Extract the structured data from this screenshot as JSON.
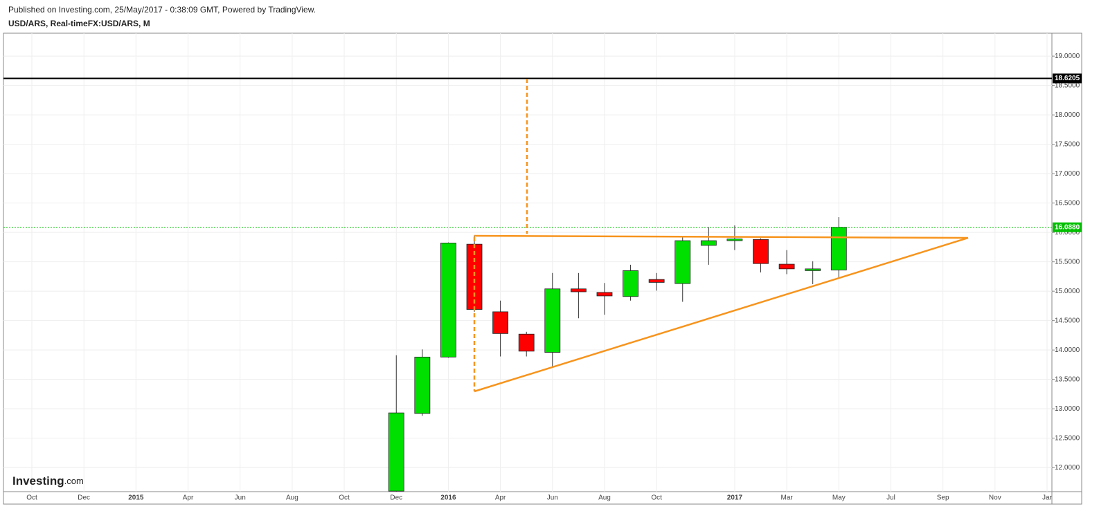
{
  "header": {
    "published": "Published on Investing.com, 25/May/2017 - 0:38:09 GMT, Powered by TradingView.",
    "symbol": "USD/ARS, Real-timeFX:USD/ARS, M"
  },
  "logo": {
    "brand": "Investing",
    "suffix": ".com"
  },
  "chart_data": {
    "type": "candlestick",
    "categories": [
      "Oct",
      null,
      "Dec",
      null,
      "2015",
      null,
      "Apr",
      null,
      "Jun",
      null,
      "Aug",
      null,
      "Oct",
      null,
      "Dec",
      null,
      "2016",
      null,
      "Apr",
      null,
      "Jun",
      null,
      "Aug",
      null,
      "Oct",
      null,
      null,
      "2017",
      null,
      "Mar",
      null,
      "May",
      null,
      "Jul",
      null,
      "Sep",
      null,
      "Nov",
      null,
      "Jar"
    ],
    "open": [
      null,
      null,
      null,
      null,
      null,
      null,
      null,
      null,
      null,
      null,
      null,
      null,
      null,
      null,
      11.6,
      12.92,
      13.88,
      15.8,
      14.65,
      14.27,
      13.96,
      15.04,
      14.98,
      14.91,
      15.2,
      15.13,
      15.78,
      15.86,
      15.88,
      15.46,
      15.35,
      15.36,
      null,
      null,
      null,
      null,
      null,
      null,
      null,
      null
    ],
    "high": [
      null,
      null,
      null,
      null,
      null,
      null,
      null,
      null,
      null,
      null,
      null,
      null,
      null,
      null,
      13.91,
      14.01,
      15.83,
      15.95,
      14.84,
      14.31,
      15.31,
      15.31,
      15.14,
      15.45,
      15.31,
      15.92,
      16.09,
      16.12,
      15.9,
      15.7,
      15.51,
      16.26,
      null,
      null,
      null,
      null,
      null,
      null,
      null,
      null
    ],
    "low": [
      null,
      null,
      null,
      null,
      null,
      null,
      null,
      null,
      null,
      null,
      null,
      null,
      null,
      null,
      11.55,
      12.88,
      13.87,
      14.65,
      13.89,
      13.89,
      13.72,
      14.54,
      14.6,
      14.84,
      15.01,
      14.82,
      15.45,
      15.7,
      15.32,
      15.29,
      15.12,
      15.22,
      null,
      null,
      null,
      null,
      null,
      null,
      null,
      null
    ],
    "close": [
      null,
      null,
      null,
      null,
      null,
      null,
      null,
      null,
      null,
      null,
      null,
      null,
      null,
      null,
      12.93,
      13.88,
      15.82,
      14.69,
      14.28,
      13.98,
      15.04,
      14.99,
      14.92,
      15.35,
      15.15,
      15.86,
      15.86,
      15.89,
      15.47,
      15.38,
      15.38,
      16.088,
      null,
      null,
      null,
      null,
      null,
      null,
      null,
      null
    ],
    "up_color": "#00e000",
    "down_color": "#ff0000",
    "ylim": [
      11.59,
      19.39
    ],
    "yticks": [
      {
        "value": 12,
        "label": "12.0000"
      },
      {
        "value": 12.5,
        "label": "12.5000"
      },
      {
        "value": 13,
        "label": "13.0000"
      },
      {
        "value": 13.5,
        "label": "13.5000"
      },
      {
        "value": 14,
        "label": "14.0000"
      },
      {
        "value": 14.5,
        "label": "14.5000"
      },
      {
        "value": 15,
        "label": "15.0000"
      },
      {
        "value": 15.5,
        "label": "15.5000"
      },
      {
        "value": 16,
        "label": "16.0000"
      },
      {
        "value": 16.5,
        "label": "16.5000"
      },
      {
        "value": 17,
        "label": "17.0000"
      },
      {
        "value": 17.5,
        "label": "17.5000"
      },
      {
        "value": 18,
        "label": "18.0000"
      },
      {
        "value": 18.5,
        "label": "18.5000"
      },
      {
        "value": 19,
        "label": "19.0000"
      }
    ],
    "grid": true,
    "price_lines": [
      {
        "value": 18.6205,
        "label": "18.6205",
        "color": "#000000",
        "style": "solid"
      },
      {
        "value": 16.088,
        "label": "16.0880",
        "color": "#00c000",
        "style": "dotted"
      }
    ]
  }
}
